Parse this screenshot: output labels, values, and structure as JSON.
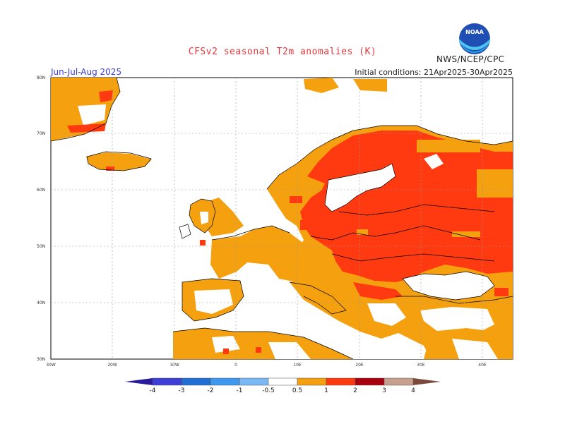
{
  "title": "CFSv2 seasonal T2m anomalies (K)",
  "agency": "NWS/NCEP/CPC",
  "logo_text": "NOAA",
  "season": "Jun-Jul-Aug 2025",
  "initial_conditions": "Initial conditions: 21Apr2025-30Apr2025",
  "map": {
    "lat_labels": [
      "80N",
      "70N",
      "60N",
      "50N",
      "40N",
      "30N"
    ],
    "lon_labels": [
      "30W",
      "20W",
      "10W",
      "0",
      "10E",
      "20E",
      "30E",
      "40E"
    ]
  },
  "colorbar": {
    "labels": [
      "-4",
      "-3",
      "-2",
      "-1",
      "-0.5",
      "0.5",
      "1",
      "2",
      "3",
      "4"
    ],
    "colors": [
      "#2a1a9c",
      "#3d3fd6",
      "#1f6fd4",
      "#3d98ee",
      "#7ab8f5",
      "#ffffff",
      "#f5a10f",
      "#ff3a10",
      "#a8000e",
      "#c8a090",
      "#7a4a3a"
    ]
  }
}
